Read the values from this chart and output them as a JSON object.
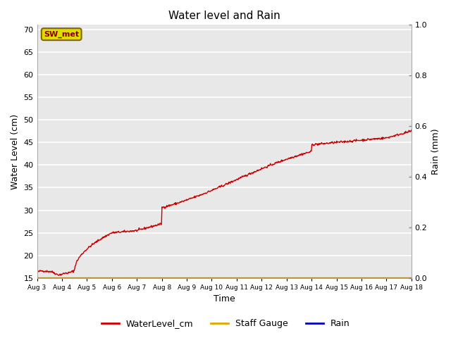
{
  "title": "Water level and Rain",
  "xlabel": "Time",
  "ylabel_left": "Water Level (cm)",
  "ylabel_right": "Rain (mm)",
  "annotation_text": "SW_met",
  "left_ylim": [
    15,
    71
  ],
  "right_ylim": [
    0.0,
    1.0
  ],
  "left_yticks": [
    15,
    20,
    25,
    30,
    35,
    40,
    45,
    50,
    55,
    60,
    65,
    70
  ],
  "right_yticks": [
    0.0,
    0.2,
    0.4,
    0.6,
    0.8,
    1.0
  ],
  "x_tick_labels": [
    "Aug 3",
    "Aug 4",
    "Aug 5",
    "Aug 6",
    "Aug 7",
    "Aug 8",
    "Aug 9",
    "Aug 10",
    "Aug 11",
    "Aug 12",
    "Aug 13",
    "Aug 14",
    "Aug 15",
    "Aug 16",
    "Aug 17",
    "Aug 18"
  ],
  "line_color_water": "#cc0000",
  "line_color_staff": "#ddaa00",
  "line_color_rain": "#0000bb",
  "legend_labels": [
    "WaterLevel_cm",
    "Staff Gauge",
    "Rain"
  ],
  "plot_bg_color": "#e8e8e8",
  "fig_bg_color": "#ffffff",
  "grid_color": "#ffffff",
  "annotation_bg": "#dddd00",
  "annotation_border": "#886600",
  "annotation_text_color": "#880000"
}
